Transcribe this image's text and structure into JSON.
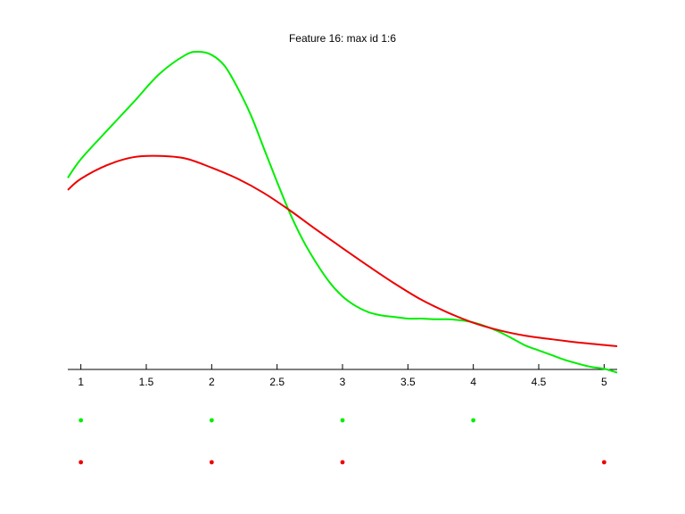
{
  "chart_data": {
    "type": "line",
    "title": "Feature 16: max id 1:6",
    "xlabel": "",
    "ylabel": "",
    "xlim": [
      0.9,
      5.1
    ],
    "ylim": [
      0,
      1
    ],
    "x_ticks": [
      "1",
      "1.5",
      "2",
      "2.5",
      "3",
      "3.5",
      "4",
      "4.5",
      "5"
    ],
    "grid": false,
    "series": [
      {
        "color": "#00ee00",
        "x": [
          0.9,
          1.0,
          1.2,
          1.4,
          1.6,
          1.8,
          1.9,
          2.0,
          2.1,
          2.2,
          2.3,
          2.4,
          2.5,
          2.6,
          2.7,
          2.8,
          2.9,
          3.0,
          3.1,
          3.2,
          3.3,
          3.4,
          3.5,
          3.6,
          3.7,
          3.8,
          3.9,
          4.0,
          4.1,
          4.2,
          4.3,
          4.4,
          4.5,
          4.6,
          4.7,
          4.8,
          4.9,
          5.0,
          5.1
        ],
        "y": [
          0.603,
          0.662,
          0.752,
          0.84,
          0.93,
          0.99,
          1.0,
          0.99,
          0.955,
          0.885,
          0.8,
          0.695,
          0.59,
          0.49,
          0.405,
          0.335,
          0.275,
          0.23,
          0.2,
          0.18,
          0.17,
          0.165,
          0.16,
          0.16,
          0.158,
          0.158,
          0.155,
          0.148,
          0.135,
          0.118,
          0.097,
          0.075,
          0.06,
          0.045,
          0.03,
          0.018,
          0.008,
          0.002,
          -0.01
        ]
      },
      {
        "color": "#ee0000",
        "x": [
          0.9,
          1.0,
          1.2,
          1.4,
          1.6,
          1.8,
          2.0,
          2.2,
          2.4,
          2.6,
          2.8,
          3.0,
          3.2,
          3.4,
          3.6,
          3.8,
          4.0,
          4.2,
          4.4,
          4.6,
          4.8,
          5.0,
          5.1
        ],
        "y": [
          0.565,
          0.6,
          0.643,
          0.668,
          0.672,
          0.664,
          0.635,
          0.6,
          0.555,
          0.5,
          0.44,
          0.382,
          0.325,
          0.27,
          0.22,
          0.18,
          0.147,
          0.123,
          0.106,
          0.095,
          0.085,
          0.077,
          0.073
        ]
      }
    ],
    "markers": [
      {
        "color": "#00ee00",
        "x": [
          1,
          2,
          3,
          4
        ]
      },
      {
        "color": "#ee0000",
        "x": [
          1,
          2,
          3,
          5
        ]
      }
    ]
  }
}
